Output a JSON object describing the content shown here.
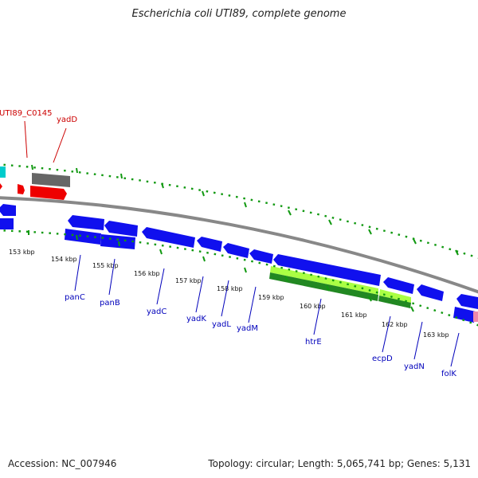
{
  "title": "Escherichia coli UTI89, complete genome",
  "footer": {
    "accession": "Accession: NC_007946",
    "summary": "Topology: circular; Length: 5,065,741 bp; Genes: 5,131"
  },
  "colors": {
    "forward_cds": "#ee0000",
    "reverse_cds": "#1010ee",
    "gray_feature": "#666666",
    "cyan_feature": "#00cccc",
    "highlight_light": "#aaff44",
    "highlight_dark": "#228822",
    "scale_tick": "#119911",
    "backbone": "#888888"
  },
  "scale_ticks": [
    "153 kbp",
    "154 kbp",
    "155 kbp",
    "156 kbp",
    "157 kbp",
    "158 kbp",
    "159 kbp",
    "160 kbp",
    "161 kbp",
    "162 kbp",
    "163 kbp"
  ],
  "gene_labels": {
    "top": [
      "UTI89_C0145",
      "yadD"
    ],
    "bottom": [
      "panC",
      "panB",
      "yadC",
      "yadK",
      "yadL",
      "yadM",
      "htrE",
      "ecpD",
      "yadN",
      "folK"
    ]
  }
}
